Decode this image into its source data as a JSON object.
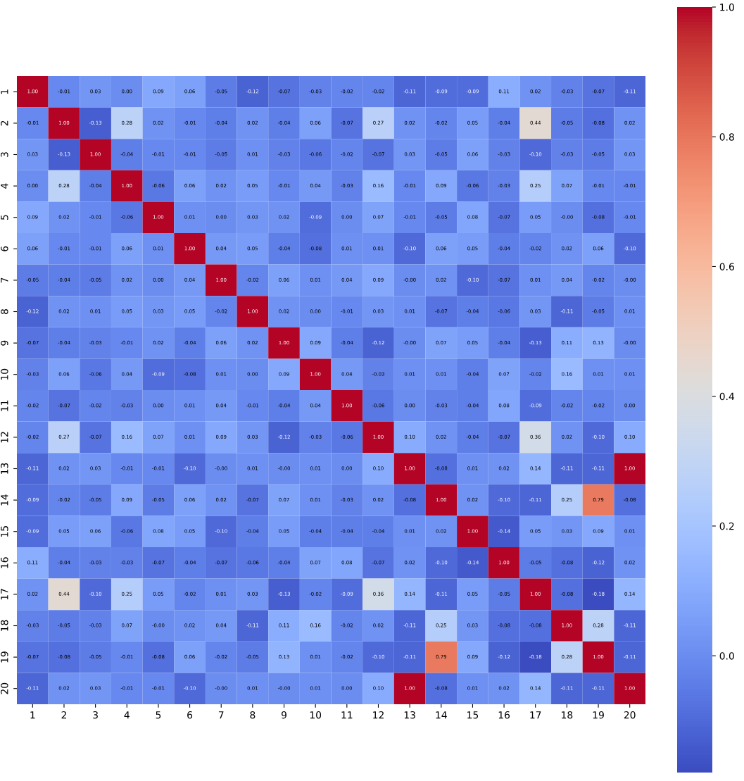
{
  "chart_data": {
    "type": "heatmap",
    "categories": [
      "1",
      "2",
      "3",
      "4",
      "5",
      "6",
      "7",
      "8",
      "9",
      "10",
      "11",
      "12",
      "13",
      "14",
      "15",
      "16",
      "17",
      "18",
      "19",
      "20"
    ],
    "y_categories": [
      "1",
      "2",
      "3",
      "4",
      "5",
      "6",
      "7",
      "8",
      "9",
      "10",
      "11",
      "12",
      "13",
      "14",
      "15",
      "16",
      "17",
      "18",
      "19",
      "20"
    ],
    "cells": [
      [
        1.0,
        -0.01,
        0.03,
        0.0,
        0.09,
        0.06,
        -0.05,
        -0.12,
        -0.07,
        -0.03,
        -0.02,
        -0.02,
        -0.11,
        -0.09,
        -0.09,
        0.11,
        0.02,
        -0.03,
        -0.07,
        -0.11
      ],
      [
        -0.01,
        1.0,
        -0.13,
        0.28,
        0.02,
        -0.01,
        -0.04,
        0.02,
        -0.04,
        0.06,
        -0.07,
        0.27,
        0.02,
        -0.02,
        0.05,
        -0.04,
        0.44,
        -0.05,
        -0.08,
        0.02
      ],
      [
        0.03,
        -0.13,
        1.0,
        -0.04,
        -0.01,
        -0.01,
        -0.05,
        0.01,
        -0.03,
        -0.06,
        -0.02,
        -0.07,
        0.03,
        -0.05,
        0.06,
        -0.03,
        -0.1,
        -0.03,
        -0.05,
        0.03
      ],
      [
        0.0,
        0.28,
        -0.04,
        1.0,
        -0.06,
        0.06,
        0.02,
        0.05,
        -0.01,
        0.04,
        -0.03,
        0.16,
        -0.01,
        0.09,
        -0.06,
        -0.03,
        0.25,
        0.07,
        -0.01,
        -0.01
      ],
      [
        0.09,
        0.02,
        -0.01,
        -0.06,
        1.0,
        0.01,
        0.0,
        0.03,
        0.02,
        -0.09,
        0.0,
        0.07,
        -0.01,
        -0.05,
        0.08,
        -0.07,
        0.05,
        -0.0,
        -0.08,
        -0.01
      ],
      [
        0.06,
        -0.01,
        -0.01,
        0.06,
        0.01,
        1.0,
        0.04,
        0.05,
        -0.04,
        -0.08,
        0.01,
        0.01,
        -0.1,
        0.06,
        0.05,
        -0.04,
        -0.02,
        0.02,
        0.06,
        -0.1
      ],
      [
        -0.05,
        -0.04,
        -0.05,
        0.02,
        0.0,
        0.04,
        1.0,
        -0.02,
        0.06,
        0.01,
        0.04,
        0.09,
        -0.0,
        0.02,
        -0.1,
        -0.07,
        0.01,
        0.04,
        -0.02,
        -0.0
      ],
      [
        -0.12,
        0.02,
        0.01,
        0.05,
        0.03,
        0.05,
        -0.02,
        1.0,
        0.02,
        0.0,
        -0.01,
        0.03,
        0.01,
        -0.07,
        -0.04,
        -0.06,
        0.03,
        -0.11,
        -0.05,
        0.01
      ],
      [
        -0.07,
        -0.04,
        -0.03,
        -0.01,
        0.02,
        -0.04,
        0.06,
        0.02,
        1.0,
        0.09,
        -0.04,
        -0.12,
        -0.0,
        0.07,
        0.05,
        -0.04,
        -0.13,
        0.11,
        0.13,
        -0.0
      ],
      [
        -0.03,
        0.06,
        -0.06,
        0.04,
        -0.09,
        -0.08,
        0.01,
        0.0,
        0.09,
        1.0,
        0.04,
        -0.03,
        0.01,
        0.01,
        -0.04,
        0.07,
        -0.02,
        0.16,
        0.01,
        0.01
      ],
      [
        -0.02,
        -0.07,
        -0.02,
        -0.03,
        0.0,
        0.01,
        0.04,
        -0.01,
        -0.04,
        0.04,
        1.0,
        -0.06,
        0.0,
        -0.03,
        -0.04,
        0.08,
        -0.09,
        -0.02,
        -0.02,
        0.0
      ],
      [
        -0.02,
        0.27,
        -0.07,
        0.16,
        0.07,
        0.01,
        0.09,
        0.03,
        -0.12,
        -0.03,
        -0.06,
        1.0,
        0.1,
        0.02,
        -0.04,
        -0.07,
        0.36,
        0.02,
        -0.1,
        0.1
      ],
      [
        -0.11,
        0.02,
        0.03,
        -0.01,
        -0.01,
        -0.1,
        -0.0,
        0.01,
        -0.0,
        0.01,
        0.0,
        0.1,
        1.0,
        -0.08,
        0.01,
        0.02,
        0.14,
        -0.11,
        -0.11,
        1.0
      ],
      [
        -0.09,
        -0.02,
        -0.05,
        0.09,
        -0.05,
        0.06,
        0.02,
        -0.07,
        0.07,
        0.01,
        -0.03,
        0.02,
        -0.08,
        1.0,
        0.02,
        -0.1,
        -0.11,
        0.25,
        0.79,
        -0.08
      ],
      [
        -0.09,
        0.05,
        0.06,
        -0.06,
        0.08,
        0.05,
        -0.1,
        -0.04,
        0.05,
        -0.04,
        -0.04,
        -0.04,
        0.01,
        0.02,
        1.0,
        -0.14,
        0.05,
        0.03,
        0.09,
        0.01
      ],
      [
        0.11,
        -0.04,
        -0.03,
        -0.03,
        -0.07,
        -0.04,
        -0.07,
        -0.06,
        -0.04,
        0.07,
        0.08,
        -0.07,
        0.02,
        -0.1,
        -0.14,
        1.0,
        -0.05,
        -0.08,
        -0.12,
        0.02
      ],
      [
        0.02,
        0.44,
        -0.1,
        0.25,
        0.05,
        -0.02,
        0.01,
        0.03,
        -0.13,
        -0.02,
        -0.09,
        0.36,
        0.14,
        -0.11,
        0.05,
        -0.05,
        1.0,
        -0.08,
        -0.18,
        0.14
      ],
      [
        -0.03,
        -0.05,
        -0.03,
        0.07,
        -0.0,
        0.02,
        0.04,
        -0.11,
        0.11,
        0.16,
        -0.02,
        0.02,
        -0.11,
        0.25,
        0.03,
        -0.08,
        -0.08,
        1.0,
        0.28,
        -0.11
      ],
      [
        -0.07,
        -0.08,
        -0.05,
        -0.01,
        -0.08,
        0.06,
        -0.02,
        -0.05,
        0.13,
        0.01,
        -0.02,
        -0.1,
        -0.11,
        0.79,
        0.09,
        -0.12,
        -0.18,
        0.28,
        1.0,
        -0.11
      ],
      [
        -0.11,
        0.02,
        0.03,
        -0.01,
        -0.01,
        -0.1,
        -0.0,
        0.01,
        -0.0,
        0.01,
        0.0,
        0.1,
        1.0,
        -0.08,
        0.01,
        0.02,
        0.14,
        -0.11,
        -0.11,
        1.0
      ]
    ],
    "cell_labels": [
      [
        "1.00",
        "-0.01",
        "0.03",
        "0.00",
        "0.09",
        "0.06",
        "-0.05",
        "-0.12",
        "-0.07",
        "-0.03",
        "-0.02",
        "-0.02",
        "-0.11",
        "-0.09",
        "-0.09",
        "0.11",
        "0.02",
        "-0.03",
        "-0.07",
        "-0.11"
      ],
      [
        "-0.01",
        "1.00",
        "-0.13",
        "0.28",
        "0.02",
        "-0.01",
        "-0.04",
        "0.02",
        "-0.04",
        "0.06",
        "-0.07",
        "0.27",
        "0.02",
        "-0.02",
        "0.05",
        "-0.04",
        "0.44",
        "-0.05",
        "-0.08",
        "0.02"
      ],
      [
        "0.03",
        "-0.13",
        "1.00",
        "-0.04",
        "-0.01",
        "-0.01",
        "-0.05",
        "0.01",
        "-0.03",
        "-0.06",
        "-0.02",
        "-0.07",
        "0.03",
        "-0.05",
        "0.06",
        "-0.03",
        "-0.10",
        "-0.03",
        "-0.05",
        "0.03"
      ],
      [
        "0.00",
        "0.28",
        "-0.04",
        "1.00",
        "-0.06",
        "0.06",
        "0.02",
        "0.05",
        "-0.01",
        "0.04",
        "-0.03",
        "0.16",
        "-0.01",
        "0.09",
        "-0.06",
        "-0.03",
        "0.25",
        "0.07",
        "-0.01",
        "-0.01"
      ],
      [
        "0.09",
        "0.02",
        "-0.01",
        "-0.06",
        "1.00",
        "0.01",
        "0.00",
        "0.03",
        "0.02",
        "-0.09",
        "0.00",
        "0.07",
        "-0.01",
        "-0.05",
        "0.08",
        "-0.07",
        "0.05",
        "-0.00",
        "-0.08",
        "-0.01"
      ],
      [
        "0.06",
        "-0.01",
        "-0.01",
        "0.06",
        "0.01",
        "1.00",
        "0.04",
        "0.05",
        "-0.04",
        "-0.08",
        "0.01",
        "0.01",
        "-0.10",
        "0.06",
        "0.05",
        "-0.04",
        "-0.02",
        "0.02",
        "0.06",
        "-0.10"
      ],
      [
        "-0.05",
        "-0.04",
        "-0.05",
        "0.02",
        "0.00",
        "0.04",
        "1.00",
        "-0.02",
        "0.06",
        "0.01",
        "0.04",
        "0.09",
        "-0.00",
        "0.02",
        "-0.10",
        "-0.07",
        "0.01",
        "0.04",
        "-0.02",
        "-0.00"
      ],
      [
        "-0.12",
        "0.02",
        "0.01",
        "0.05",
        "0.03",
        "0.05",
        "-0.02",
        "1.00",
        "0.02",
        "0.00",
        "-0.01",
        "0.03",
        "0.01",
        "-0.07",
        "-0.04",
        "-0.06",
        "0.03",
        "-0.11",
        "-0.05",
        "0.01"
      ],
      [
        "-0.07",
        "-0.04",
        "-0.03",
        "-0.01",
        "0.02",
        "-0.04",
        "0.06",
        "0.02",
        "1.00",
        "0.09",
        "-0.04",
        "-0.12",
        "-0.00",
        "0.07",
        "0.05",
        "-0.04",
        "-0.13",
        "0.11",
        "0.13",
        "-0.00"
      ],
      [
        "-0.03",
        "0.06",
        "-0.06",
        "0.04",
        "-0.09",
        "-0.08",
        "0.01",
        "0.00",
        "0.09",
        "1.00",
        "0.04",
        "-0.03",
        "0.01",
        "0.01",
        "-0.04",
        "0.07",
        "-0.02",
        "0.16",
        "0.01",
        "0.01"
      ],
      [
        "-0.02",
        "-0.07",
        "-0.02",
        "-0.03",
        "0.00",
        "0.01",
        "0.04",
        "-0.01",
        "-0.04",
        "0.04",
        "1.00",
        "-0.06",
        "0.00",
        "-0.03",
        "-0.04",
        "0.08",
        "-0.09",
        "-0.02",
        "-0.02",
        "0.00"
      ],
      [
        "-0.02",
        "0.27",
        "-0.07",
        "0.16",
        "0.07",
        "0.01",
        "0.09",
        "0.03",
        "-0.12",
        "-0.03",
        "-0.06",
        "1.00",
        "0.10",
        "0.02",
        "-0.04",
        "-0.07",
        "0.36",
        "0.02",
        "-0.10",
        "0.10"
      ],
      [
        "-0.11",
        "0.02",
        "0.03",
        "-0.01",
        "-0.01",
        "-0.10",
        "-0.00",
        "0.01",
        "-0.00",
        "0.01",
        "0.00",
        "0.10",
        "1.00",
        "-0.08",
        "0.01",
        "0.02",
        "0.14",
        "-0.11",
        "-0.11",
        "1.00"
      ],
      [
        "-0.09",
        "-0.02",
        "-0.05",
        "0.09",
        "-0.05",
        "0.06",
        "0.02",
        "-0.07",
        "0.07",
        "0.01",
        "-0.03",
        "0.02",
        "-0.08",
        "1.00",
        "0.02",
        "-0.10",
        "-0.11",
        "0.25",
        "0.79",
        "-0.08"
      ],
      [
        "-0.09",
        "0.05",
        "0.06",
        "-0.06",
        "0.08",
        "0.05",
        "-0.10",
        "-0.04",
        "0.05",
        "-0.04",
        "-0.04",
        "-0.04",
        "0.01",
        "0.02",
        "1.00",
        "-0.14",
        "0.05",
        "0.03",
        "0.09",
        "0.01"
      ],
      [
        "0.11",
        "-0.04",
        "-0.03",
        "-0.03",
        "-0.07",
        "-0.04",
        "-0.07",
        "-0.06",
        "-0.04",
        "0.07",
        "0.08",
        "-0.07",
        "0.02",
        "-0.10",
        "-0.14",
        "1.00",
        "-0.05",
        "-0.08",
        "-0.12",
        "0.02"
      ],
      [
        "0.02",
        "0.44",
        "-0.10",
        "0.25",
        "0.05",
        "-0.02",
        "0.01",
        "0.03",
        "-0.13",
        "-0.02",
        "-0.09",
        "0.36",
        "0.14",
        "-0.11",
        "0.05",
        "-0.05",
        "1.00",
        "-0.08",
        "-0.18",
        "0.14"
      ],
      [
        "-0.03",
        "-0.05",
        "-0.03",
        "0.07",
        "-0.00",
        "0.02",
        "0.04",
        "-0.11",
        "0.11",
        "0.16",
        "-0.02",
        "0.02",
        "-0.11",
        "0.25",
        "0.03",
        "-0.08",
        "-0.08",
        "1.00",
        "0.28",
        "-0.11"
      ],
      [
        "-0.07",
        "-0.08",
        "-0.05",
        "-0.01",
        "-0.08",
        "0.06",
        "-0.02",
        "-0.05",
        "0.13",
        "0.01",
        "-0.02",
        "-0.10",
        "-0.11",
        "0.79",
        "0.09",
        "-0.12",
        "-0.18",
        "0.28",
        "1.00",
        "-0.11"
      ],
      [
        "-0.11",
        "0.02",
        "0.03",
        "-0.01",
        "-0.01",
        "-0.10",
        "-0.00",
        "0.01",
        "-0.00",
        "0.01",
        "0.00",
        "0.10",
        "1.00",
        "-0.08",
        "0.01",
        "0.02",
        "0.14",
        "-0.11",
        "-0.11",
        "1.00"
      ]
    ],
    "clim": [
      -0.18,
      1.0
    ],
    "cticks": [
      {
        "value": 0.0,
        "label": "0.0"
      },
      {
        "value": 0.2,
        "label": "0.2"
      },
      {
        "value": 0.4,
        "label": "0.4"
      },
      {
        "value": 0.6,
        "label": "0.6"
      },
      {
        "value": 0.8,
        "label": "0.8"
      },
      {
        "value": 1.0,
        "label": "1.0"
      }
    ]
  }
}
